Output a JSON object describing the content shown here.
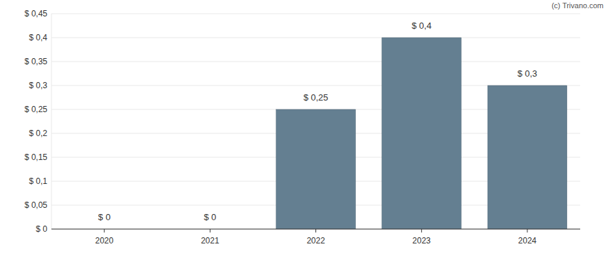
{
  "chart_data": {
    "type": "bar",
    "categories": [
      "2020",
      "2021",
      "2022",
      "2023",
      "2024"
    ],
    "values": [
      0,
      0,
      0.25,
      0.4,
      0.3
    ],
    "value_labels": [
      "$ 0",
      "$ 0",
      "$ 0,25",
      "$ 0,4",
      "$ 0,3"
    ],
    "data_labels": true,
    "color": "#647f91",
    "ylim": [
      0,
      0.45
    ],
    "yticks": [
      {
        "value": 0,
        "label": "$ 0"
      },
      {
        "value": 0.05,
        "label": "$ 0,05"
      },
      {
        "value": 0.1,
        "label": "$ 0,1"
      },
      {
        "value": 0.15,
        "label": "$ 0,15"
      },
      {
        "value": 0.2,
        "label": "$ 0,2"
      },
      {
        "value": 0.25,
        "label": "$ 0,25"
      },
      {
        "value": 0.3,
        "label": "$ 0,3"
      },
      {
        "value": 0.35,
        "label": "$ 0,35"
      },
      {
        "value": 0.4,
        "label": "$ 0,4"
      },
      {
        "value": 0.45,
        "label": "$ 0,45"
      }
    ],
    "grid": true,
    "annotations": [
      "(c) Trivano.com"
    ]
  }
}
